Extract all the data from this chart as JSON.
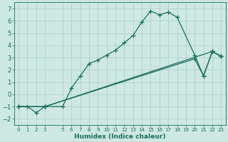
{
  "xlabel": "Humidex (Indice chaleur)",
  "bg_color": "#cce8e0",
  "grid_color": "#aacccc",
  "line_color": "#1a6e5e",
  "xlim": [
    -0.5,
    23.5
  ],
  "ylim": [
    -2.5,
    7.5
  ],
  "xticks": [
    0,
    1,
    2,
    3,
    5,
    6,
    7,
    8,
    9,
    10,
    11,
    12,
    13,
    14,
    15,
    16,
    17,
    18,
    19,
    20,
    21,
    22,
    23
  ],
  "yticks": [
    -2,
    -1,
    0,
    1,
    2,
    3,
    4,
    5,
    6,
    7
  ],
  "line1_x": [
    0,
    1,
    2,
    3,
    5,
    6,
    7,
    8,
    9,
    10,
    11,
    12,
    13,
    14,
    15,
    16,
    17,
    18,
    20,
    21,
    22,
    23
  ],
  "line1_y": [
    -1,
    -1,
    -1.5,
    -1,
    -1,
    0.5,
    1.5,
    2.5,
    2.8,
    3.2,
    3.6,
    4.2,
    4.8,
    5.9,
    6.8,
    6.5,
    6.7,
    6.3,
    3.2,
    1.5,
    3.5,
    3.1
  ],
  "line2_x": [
    0,
    3,
    22,
    23
  ],
  "line2_y": [
    -1,
    -1,
    3.5,
    3.1
  ],
  "line3_x": [
    0,
    3,
    20,
    21,
    22,
    23
  ],
  "line3_y": [
    -1,
    -1,
    2.9,
    1.5,
    3.5,
    3.1
  ]
}
